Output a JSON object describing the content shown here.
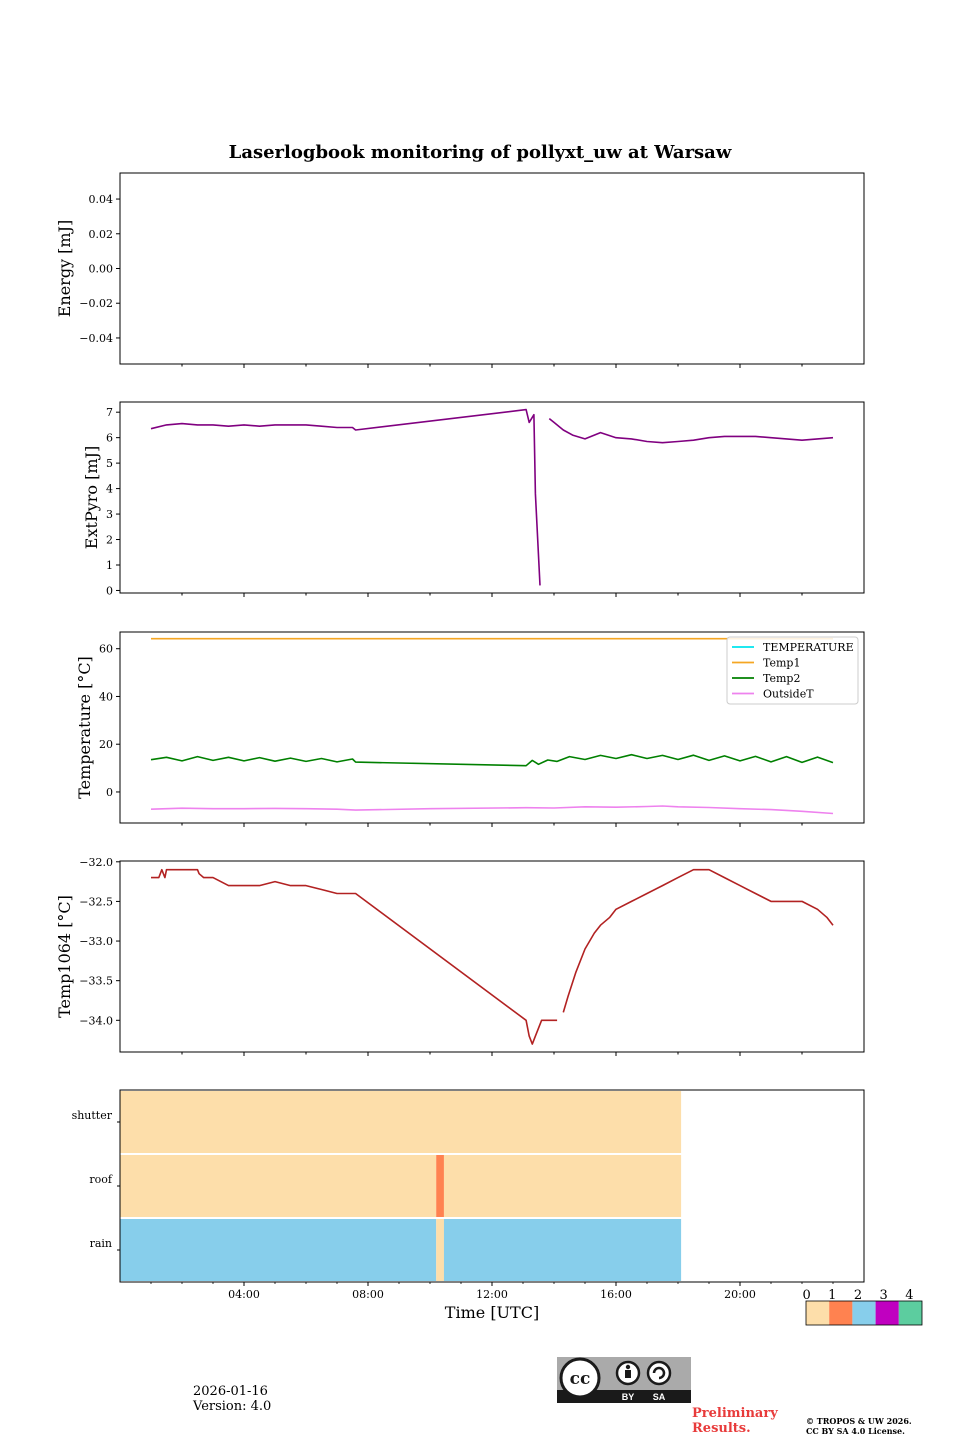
{
  "figure_title": "Laserlogbook monitoring of pollyxt_uw at Warsaw",
  "date": "2026-01-16",
  "version": "Version: 4.0",
  "preliminary": "Preliminary Results.",
  "copyright_line1": "© TROPOS & UW 2026.",
  "copyright_line2": "CC BY SA 4.0 License.",
  "license_badge": {
    "cc": "cc",
    "by": "BY",
    "sa": "SA"
  },
  "chart_data": [
    {
      "type": "line",
      "ylabel": "Energy [mJ]",
      "ylim": [
        -0.055,
        0.055
      ],
      "yticks": [
        -0.04,
        -0.02,
        0.0,
        0.02,
        0.04
      ],
      "ytick_labels": [
        "−0.04",
        "−0.02",
        "0.00",
        "0.02",
        "0.04"
      ],
      "series": []
    },
    {
      "type": "line",
      "ylabel": "ExtPyro [mJ]",
      "xlim": [
        0.0,
        24.0
      ],
      "ylim": [
        -0.1,
        7.4
      ],
      "yticks": [
        0,
        1,
        2,
        3,
        4,
        5,
        6,
        7
      ],
      "ytick_labels": [
        "0",
        "1",
        "2",
        "3",
        "4",
        "5",
        "6",
        "7"
      ],
      "series": [
        {
          "name": "ExtPyro",
          "color": "#800080",
          "segments": [
            {
              "x": [
                1.0,
                1.5,
                2.0,
                2.5,
                3.0,
                3.5,
                4.0,
                4.5,
                5.0,
                5.5,
                6.0,
                6.5,
                7.0,
                7.5,
                7.6,
                13.1,
                13.2,
                13.35,
                13.4,
                13.55
              ],
              "y": [
                6.35,
                6.5,
                6.55,
                6.5,
                6.5,
                6.45,
                6.5,
                6.45,
                6.5,
                6.5,
                6.5,
                6.45,
                6.4,
                6.4,
                6.3,
                7.1,
                6.6,
                6.9,
                3.8,
                0.2
              ]
            },
            {
              "x": [
                13.85,
                14.0,
                14.3,
                14.6,
                15.0,
                15.5,
                16.0,
                16.5,
                17.0,
                17.5,
                18.0,
                18.5,
                19.0,
                19.5,
                20.0,
                20.5,
                21.0,
                21.5,
                22.0,
                22.5,
                23.0
              ],
              "y": [
                6.75,
                6.6,
                6.3,
                6.1,
                5.95,
                6.2,
                6.0,
                5.95,
                5.85,
                5.8,
                5.85,
                5.9,
                6.0,
                6.05,
                6.05,
                6.05,
                6.0,
                5.95,
                5.9,
                5.95,
                6.0
              ]
            }
          ]
        }
      ]
    },
    {
      "type": "line",
      "ylabel": "Temperature [°C]",
      "xlim": [
        0.0,
        24.0
      ],
      "ylim": [
        -13,
        67
      ],
      "yticks": [
        0,
        20,
        40,
        60
      ],
      "ytick_labels": [
        "0",
        "20",
        "40",
        "60"
      ],
      "legend": [
        "TEMPERATURE",
        "Temp1",
        "Temp2",
        "OutsideT"
      ],
      "legend_location": "upper right",
      "series": [
        {
          "name": "TEMPERATURE",
          "color": "#00e5ee",
          "segments": []
        },
        {
          "name": "Temp1",
          "color": "#f5a623",
          "segments": [
            {
              "x": [
                1.0,
                23.0
              ],
              "y": [
                64.2,
                64.2
              ]
            }
          ]
        },
        {
          "name": "Temp2",
          "color": "#008000",
          "segments": [
            {
              "x": [
                1.0,
                1.5,
                2.0,
                2.5,
                3.0,
                3.5,
                4.0,
                4.5,
                5.0,
                5.5,
                6.0,
                6.5,
                7.0,
                7.5,
                7.6,
                13.1,
                13.3,
                13.5,
                13.8,
                14.1,
                14.5,
                15.0,
                15.5,
                16.0,
                16.5,
                17.0,
                17.5,
                18.0,
                18.5,
                19.0,
                19.5,
                20.0,
                20.5,
                21.0,
                21.5,
                22.0,
                22.5,
                23.0
              ],
              "y": [
                13.5,
                14.5,
                13.0,
                14.8,
                13.2,
                14.5,
                13.0,
                14.4,
                12.9,
                14.2,
                12.8,
                14.0,
                12.6,
                13.8,
                12.5,
                11.0,
                13.2,
                11.6,
                13.4,
                12.8,
                14.8,
                13.6,
                15.3,
                14.0,
                15.6,
                14.0,
                15.3,
                13.6,
                15.4,
                13.2,
                15.1,
                13.0,
                14.9,
                12.6,
                14.8,
                12.4,
                14.6,
                12.3
              ]
            }
          ]
        },
        {
          "name": "OutsideT",
          "color": "#ee82ee",
          "segments": [
            {
              "x": [
                1.0,
                2.0,
                3.0,
                4.0,
                5.0,
                6.0,
                7.0,
                7.6,
                10.0,
                13.1,
                14.0,
                15.0,
                16.0,
                17.0,
                17.5,
                18.0,
                19.0,
                20.0,
                21.0,
                22.0,
                23.0
              ],
              "y": [
                -7.2,
                -6.8,
                -7.0,
                -7.0,
                -6.9,
                -7.0,
                -7.2,
                -7.6,
                -7.0,
                -6.6,
                -6.7,
                -6.2,
                -6.4,
                -6.1,
                -5.9,
                -6.2,
                -6.5,
                -7.0,
                -7.4,
                -8.1,
                -9.0
              ]
            }
          ]
        }
      ]
    },
    {
      "type": "line",
      "ylabel": "Temp1064 [°C]",
      "xlim": [
        0.0,
        24.0
      ],
      "ylim": [
        -34.4,
        -31.99
      ],
      "yticks": [
        -34.0,
        -33.5,
        -33.0,
        -32.5,
        -32.0
      ],
      "ytick_labels": [
        "−34.0",
        "−33.5",
        "−33.0",
        "−32.5",
        "−32.0"
      ],
      "series": [
        {
          "name": "Temp1064",
          "color": "#b22222",
          "segments": [
            {
              "x": [
                1.0,
                1.25,
                1.3,
                1.35,
                1.45,
                1.5,
                2.0,
                2.5,
                2.55,
                2.7,
                2.75,
                3.0,
                3.5,
                4.0,
                4.5,
                5.0,
                5.5,
                5.6,
                6.0,
                6.5,
                7.0,
                7.5,
                7.6,
                13.1,
                13.2,
                13.3,
                13.4,
                13.5,
                13.6,
                13.7,
                14.0,
                14.05,
                14.1
              ],
              "y": [
                -32.2,
                -32.2,
                -32.15,
                -32.1,
                -32.2,
                -32.1,
                -32.1,
                -32.1,
                -32.15,
                -32.2,
                -32.2,
                -32.2,
                -32.3,
                -32.3,
                -32.3,
                -32.25,
                -32.3,
                -32.3,
                -32.3,
                -32.35,
                -32.4,
                -32.4,
                -32.4,
                -34.0,
                -34.2,
                -34.3,
                -34.2,
                -34.1,
                -34.0,
                -34.0,
                -34.0,
                -34.0,
                -34.0
              ]
            },
            {
              "x": [
                14.3,
                14.45,
                14.7,
                15.0,
                15.3,
                15.5,
                15.8,
                16.0,
                16.5,
                17.0,
                17.5,
                18.0,
                18.5,
                19.0,
                19.5,
                20.0,
                20.5,
                21.0,
                21.5,
                22.0,
                22.5,
                22.8,
                23.0
              ],
              "y": [
                -33.9,
                -33.7,
                -33.4,
                -33.1,
                -32.9,
                -32.8,
                -32.7,
                -32.6,
                -32.5,
                -32.4,
                -32.3,
                -32.2,
                -32.1,
                -32.1,
                -32.2,
                -32.3,
                -32.4,
                -32.5,
                -32.5,
                -32.5,
                -32.6,
                -32.7,
                -32.8
              ]
            }
          ]
        }
      ]
    },
    {
      "type": "heatmap",
      "xlabel": "Time [UTC]",
      "xlim": [
        0.0,
        24.0
      ],
      "xticks": [
        4,
        8,
        12,
        16,
        20
      ],
      "xtick_labels": [
        "04:00",
        "08:00",
        "12:00",
        "16:00",
        "20:00"
      ],
      "rows": [
        "shutter",
        "roof",
        "rain"
      ],
      "data_end_hour": 18.1,
      "segments": [
        {
          "row": "shutter",
          "x0": 0.0,
          "x1": 18.1,
          "value": 0
        },
        {
          "row": "roof",
          "x0": 0.0,
          "x1": 10.2,
          "value": 0
        },
        {
          "row": "roof",
          "x0": 10.2,
          "x1": 10.45,
          "value": 1
        },
        {
          "row": "roof",
          "x0": 10.45,
          "x1": 18.1,
          "value": 0
        },
        {
          "row": "rain",
          "x0": 0.0,
          "x1": 10.2,
          "value": 2
        },
        {
          "row": "rain",
          "x0": 10.2,
          "x1": 10.45,
          "value": 0
        },
        {
          "row": "rain",
          "x0": 10.45,
          "x1": 18.1,
          "value": 2
        }
      ],
      "colorbar": {
        "levels": [
          0,
          1,
          2,
          3,
          4
        ],
        "labels": [
          "0",
          "1",
          "2",
          "3",
          "4"
        ],
        "colors": [
          "#fddeaa",
          "#ff8250",
          "#87ceeb",
          "#c000c0",
          "#5ccd9f"
        ]
      }
    }
  ]
}
